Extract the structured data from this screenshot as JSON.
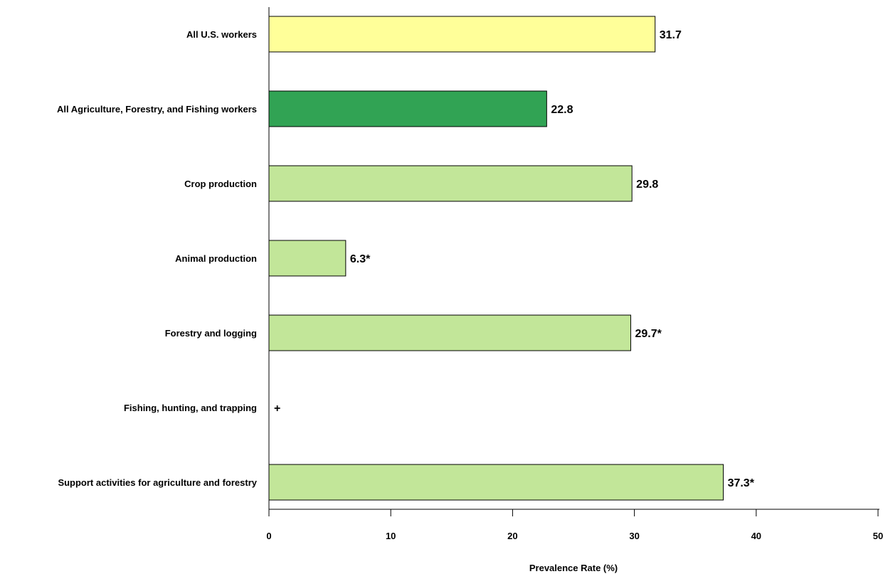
{
  "chart_data": {
    "type": "bar",
    "orientation": "horizontal",
    "categories": [
      "All U.S. workers",
      "All Agriculture, Forestry, and Fishing workers",
      "Crop production",
      "Animal production",
      "Forestry and logging",
      "Fishing, hunting, and trapping",
      "Support activities for agriculture and forestry"
    ],
    "values": [
      31.7,
      22.8,
      29.8,
      6.3,
      29.7,
      null,
      37.3
    ],
    "value_labels": [
      "31.7",
      "22.8",
      "29.8",
      "6.3*",
      "29.7*",
      "+",
      "37.3*"
    ],
    "bar_colors": [
      "#FFFF99",
      "#31A354",
      "#C2E699",
      "#C2E699",
      "#C2E699",
      "#C2E699",
      "#C2E699"
    ],
    "xlabel": "Prevalence Rate (%)",
    "xlim": [
      0,
      50
    ],
    "xticks": [
      0,
      10,
      20,
      30,
      40,
      50
    ],
    "xtick_labels": [
      "0",
      "10",
      "20",
      "30",
      "40",
      "50"
    ],
    "grid": false,
    "legend": "none"
  }
}
